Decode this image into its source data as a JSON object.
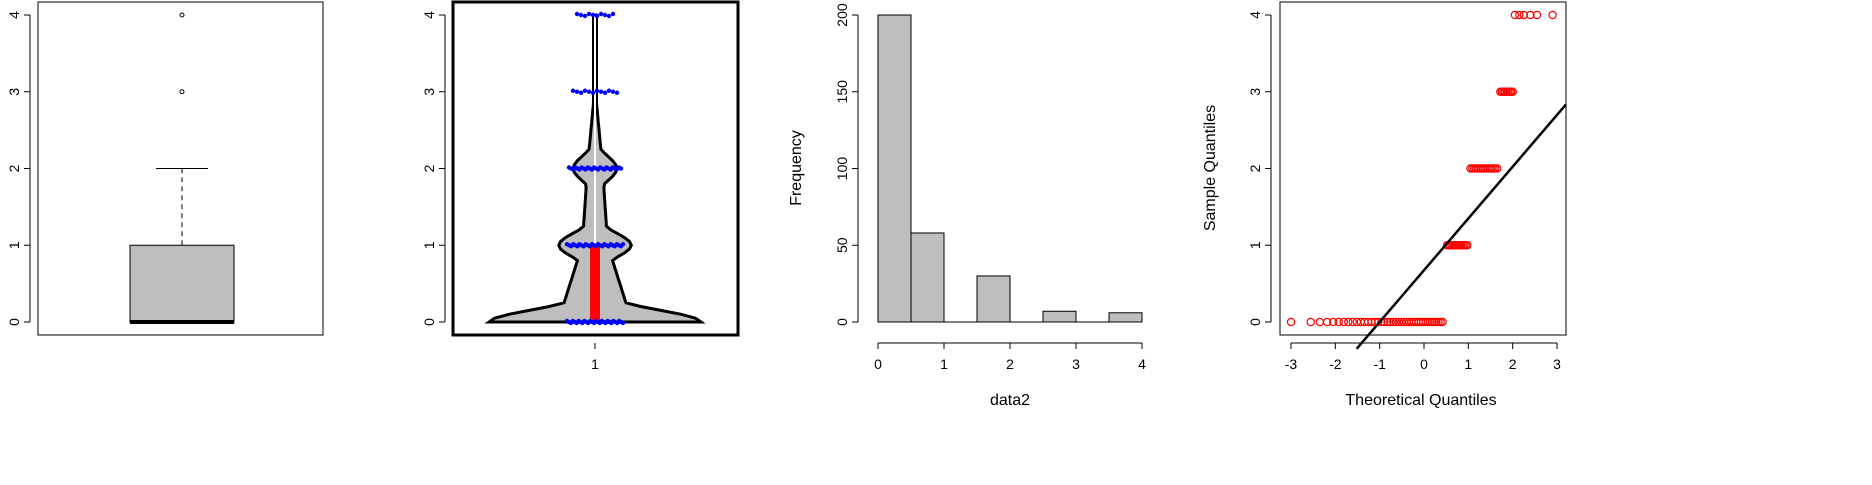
{
  "chart_data": [
    {
      "type": "boxplot",
      "ylim": [
        0,
        4
      ],
      "yticks": [
        "0",
        "1",
        "2",
        "3",
        "4"
      ],
      "stats": {
        "min": 0,
        "q1": 0,
        "median": 0,
        "q3": 1,
        "max": 2
      },
      "outliers": [
        3,
        4
      ],
      "colors": {
        "box": "#bebebe"
      }
    },
    {
      "type": "violin",
      "ylim": [
        0,
        4
      ],
      "yticks": [
        "0",
        "1",
        "2",
        "3",
        "4"
      ],
      "xticks": [
        "1"
      ],
      "values_levels": [
        0,
        1,
        2,
        3,
        4
      ],
      "density_halfwidth": [
        0.73,
        0.25,
        0.15,
        0.01,
        0.01
      ],
      "iqr": [
        0,
        1
      ],
      "colors": {
        "fill": "#bebebe",
        "box": "#ff0000",
        "points": "#0000ff"
      }
    },
    {
      "type": "bar",
      "ylabel": "Frequency",
      "xlabel": "data2",
      "bins": [
        [
          0,
          0.5
        ],
        [
          0.5,
          1
        ],
        [
          1,
          1.5
        ],
        [
          1.5,
          2
        ],
        [
          2,
          2.5
        ],
        [
          2.5,
          3
        ],
        [
          3,
          3.5
        ],
        [
          3.5,
          4
        ]
      ],
      "values": [
        200,
        58,
        0,
        30,
        0,
        7,
        0,
        6
      ],
      "xlim": [
        0,
        4
      ],
      "ylim": [
        0,
        200
      ],
      "xticks": [
        "0",
        "1",
        "2",
        "3",
        "4"
      ],
      "yticks": [
        "0",
        "50",
        "100",
        "150",
        "200"
      ],
      "colors": {
        "bar": "#bebebe"
      }
    },
    {
      "type": "scatter",
      "xlabel": "Theoretical Quantiles",
      "ylabel": "Sample Quantiles",
      "xlim": [
        -3,
        3
      ],
      "ylim": [
        0,
        4
      ],
      "xticks": [
        "-3",
        "-2",
        "-1",
        "0",
        "1",
        "2",
        "3"
      ],
      "yticks": [
        "0",
        "1",
        "2",
        "3",
        "4"
      ],
      "points": [
        {
          "y": 0,
          "x_from": -3.0,
          "x_to": 0.42
        },
        {
          "y": 1,
          "x_from": 0.52,
          "x_to": 0.98
        },
        {
          "y": 2,
          "x_from": 1.05,
          "x_to": 1.65
        },
        {
          "y": 3,
          "x_from": 1.72,
          "x_to": 2.0
        },
        {
          "y": 4,
          "x_from": 2.05,
          "x_to": 2.9
        }
      ],
      "qq_line": {
        "intercept": 0.6745,
        "slope": 0.6745
      },
      "colors": {
        "points": "#ff0000",
        "line": "#000000"
      }
    }
  ]
}
